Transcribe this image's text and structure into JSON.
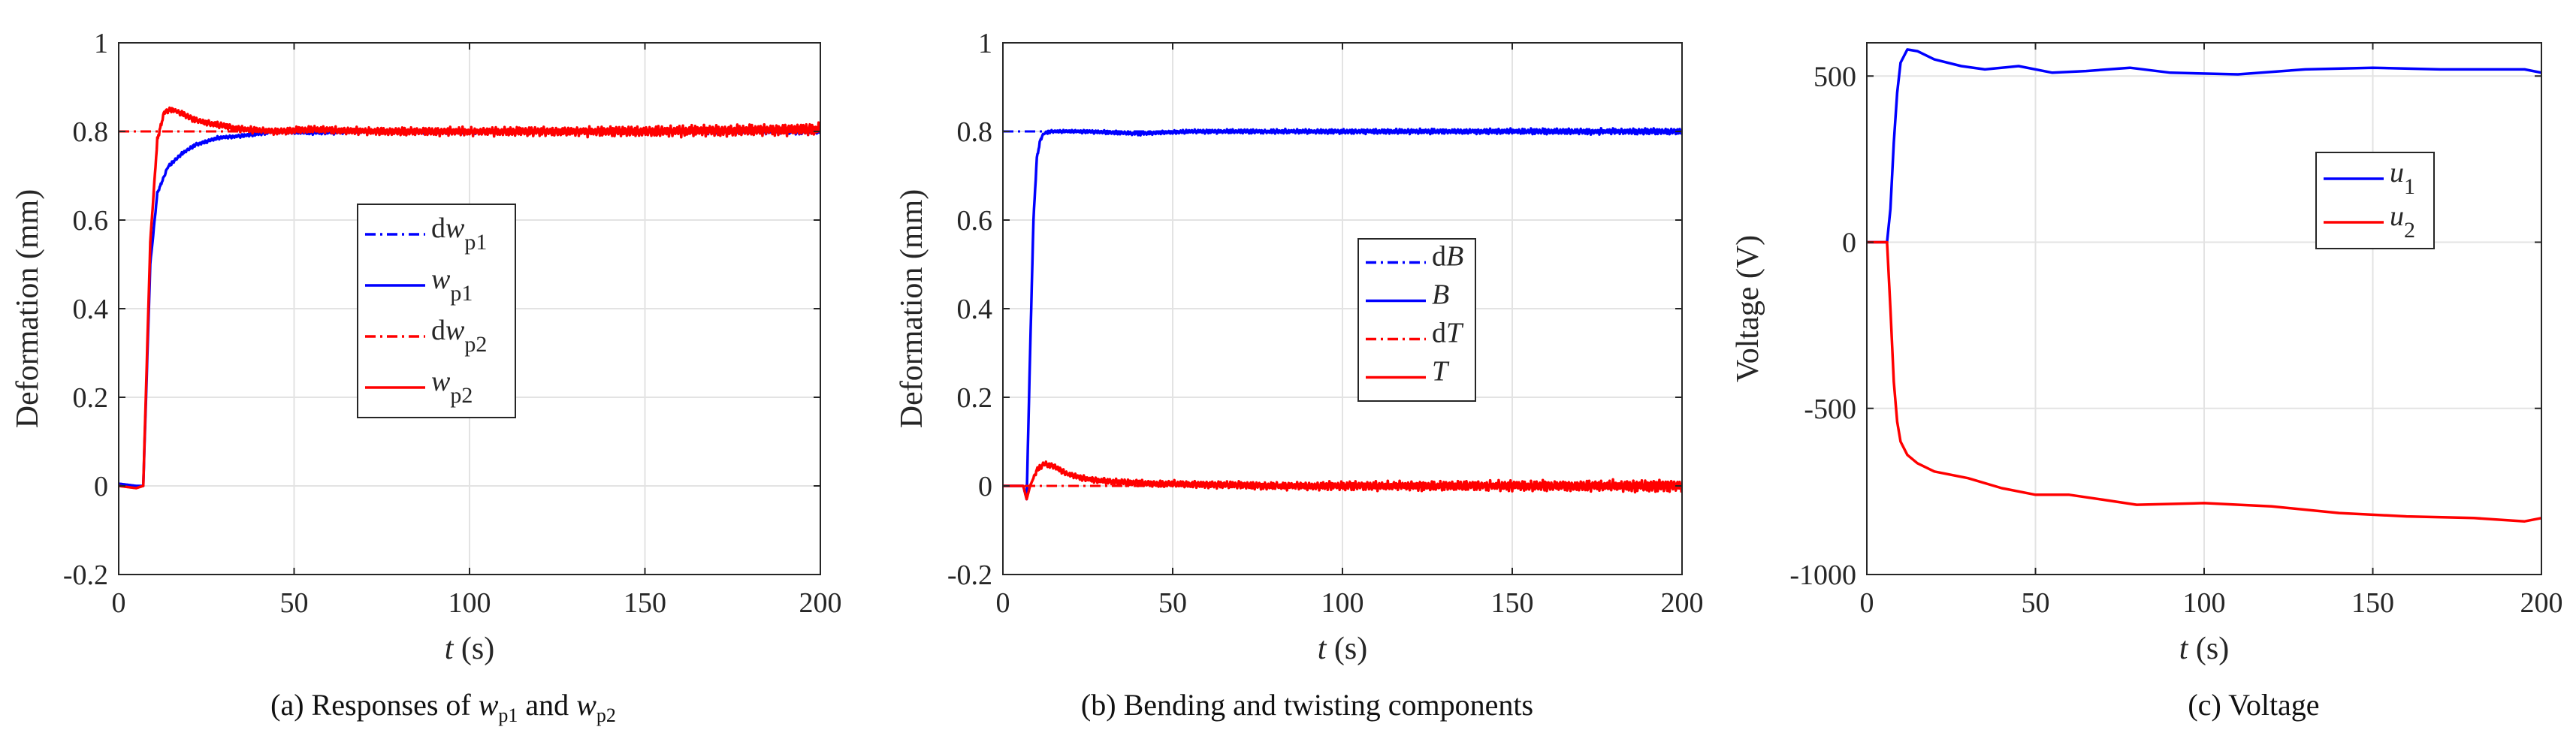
{
  "figure": {
    "panels": [
      {
        "caption": {
          "prefix": "(a) Responses of ",
          "v1": "w",
          "s1": "p1",
          "mid": " and ",
          "v2": "w",
          "s2": "p2"
        }
      },
      {
        "caption": {
          "text": "(b) Bending and twisting components"
        }
      },
      {
        "caption": {
          "text": "(c) Voltage"
        }
      }
    ]
  },
  "colors": {
    "blue": "#0000ff",
    "red": "#ff0000",
    "grid": "#e3e3e3",
    "axis": "#262626"
  },
  "chart_data": [
    {
      "type": "line",
      "xlabel_var": "t",
      "xlabel_unit": " (s)",
      "ylabel": "Deformation (mm)",
      "xlim": [
        0,
        200
      ],
      "ylim": [
        -0.2,
        1
      ],
      "xticks": [
        0,
        50,
        100,
        150,
        200
      ],
      "yticks": [
        -0.2,
        0,
        0.2,
        0.4,
        0.6,
        0.8,
        1
      ],
      "ytick_labels": [
        "-0.2",
        "0",
        "0.2",
        "0.4",
        "0.6",
        "0.8",
        "1"
      ],
      "grid": true,
      "legend_position": "center",
      "series": [
        {
          "name": "dw_p1",
          "label_pre": "d",
          "label_var": "w",
          "label_sub": "p1",
          "color": "#0000ff",
          "style": "dashdot",
          "x": [
            0,
            7,
            200
          ],
          "y": [
            0.8,
            0.8,
            0.8
          ]
        },
        {
          "name": "w_p1",
          "label_pre": "",
          "label_var": "w",
          "label_sub": "p1",
          "color": "#0000ff",
          "style": "solid",
          "x": [
            0,
            5,
            7,
            9,
            11,
            14,
            18,
            22,
            28,
            35,
            45,
            55,
            70,
            90,
            120,
            150,
            200
          ],
          "y": [
            0.005,
            0.0,
            0.0,
            0.5,
            0.66,
            0.72,
            0.75,
            0.77,
            0.785,
            0.79,
            0.8,
            0.797,
            0.8,
            0.798,
            0.8,
            0.8,
            0.8
          ]
        },
        {
          "name": "dw_p2",
          "label_pre": "d",
          "label_var": "w",
          "label_sub": "p2",
          "color": "#ff0000",
          "style": "dashdot",
          "x": [
            0,
            7,
            200
          ],
          "y": [
            0.8,
            0.8,
            0.8
          ]
        },
        {
          "name": "w_p2",
          "label_pre": "",
          "label_var": "w",
          "label_sub": "p2",
          "color": "#ff0000",
          "style": "solid",
          "x": [
            0,
            5,
            7,
            9,
            11,
            13,
            15,
            18,
            22,
            28,
            35,
            45,
            55,
            70,
            100,
            150,
            200
          ],
          "y": [
            0.0,
            -0.005,
            0.0,
            0.55,
            0.78,
            0.845,
            0.85,
            0.84,
            0.825,
            0.815,
            0.805,
            0.8,
            0.805,
            0.8,
            0.8,
            0.8,
            0.805
          ]
        }
      ]
    },
    {
      "type": "line",
      "xlabel_var": "t",
      "xlabel_unit": " (s)",
      "ylabel": "Deformation (mm)",
      "xlim": [
        0,
        200
      ],
      "ylim": [
        -0.2,
        1
      ],
      "xticks": [
        0,
        50,
        100,
        150,
        200
      ],
      "yticks": [
        -0.2,
        0,
        0.2,
        0.4,
        0.6,
        0.8,
        1
      ],
      "ytick_labels": [
        "-0.2",
        "0",
        "0.2",
        "0.4",
        "0.6",
        "0.8",
        "1"
      ],
      "grid": true,
      "legend_position": "center-right",
      "series": [
        {
          "name": "dB",
          "label_pre": "d",
          "label_var": "B",
          "label_sub": "",
          "color": "#0000ff",
          "style": "dashdot",
          "x": [
            0,
            7,
            200
          ],
          "y": [
            0.8,
            0.8,
            0.8
          ]
        },
        {
          "name": "B",
          "label_pre": "",
          "label_var": "B",
          "label_sub": "",
          "color": "#0000ff",
          "style": "solid",
          "x": [
            0,
            6,
            7,
            8,
            9,
            10,
            11,
            12,
            14,
            18,
            25,
            40,
            55,
            80,
            120,
            160,
            200
          ],
          "y": [
            0.0,
            0.0,
            -0.03,
            0.3,
            0.6,
            0.74,
            0.78,
            0.795,
            0.8,
            0.8,
            0.8,
            0.795,
            0.8,
            0.8,
            0.8,
            0.8,
            0.8
          ]
        },
        {
          "name": "dT",
          "label_pre": "d",
          "label_var": "T",
          "label_sub": "",
          "color": "#ff0000",
          "style": "dashdot",
          "x": [
            0,
            200
          ],
          "y": [
            0.0,
            0.0
          ]
        },
        {
          "name": "T",
          "label_pre": "",
          "label_var": "T",
          "label_sub": "",
          "color": "#ff0000",
          "style": "solid",
          "x": [
            0,
            6,
            7,
            8,
            10,
            12,
            15,
            18,
            22,
            28,
            35,
            45,
            60,
            80,
            100,
            140,
            200
          ],
          "y": [
            0.0,
            0.0,
            -0.03,
            0.0,
            0.035,
            0.05,
            0.045,
            0.03,
            0.02,
            0.012,
            0.008,
            0.005,
            0.003,
            0.0,
            0.0,
            0.0,
            0.0
          ]
        }
      ]
    },
    {
      "type": "line",
      "xlabel_var": "t",
      "xlabel_unit": " (s)",
      "ylabel": "Voltage (V)",
      "xlim": [
        0,
        200
      ],
      "ylim": [
        -1000,
        600
      ],
      "xticks": [
        0,
        50,
        100,
        150,
        200
      ],
      "yticks": [
        -1000,
        -500,
        0,
        500
      ],
      "ytick_labels": [
        "-1000",
        "-500",
        "0",
        "500"
      ],
      "grid": true,
      "legend_position": "upper-right",
      "series": [
        {
          "name": "u_1",
          "label_pre": "",
          "label_var": "u",
          "label_sub": "1",
          "color": "#0000ff",
          "style": "solid",
          "x": [
            0,
            6,
            7,
            8,
            9,
            10,
            12,
            15,
            20,
            28,
            35,
            45,
            55,
            65,
            78,
            90,
            110,
            130,
            150,
            170,
            185,
            195,
            200
          ],
          "y": [
            0,
            0,
            100,
            300,
            450,
            540,
            580,
            575,
            550,
            530,
            520,
            530,
            510,
            515,
            525,
            510,
            505,
            520,
            525,
            520,
            520,
            520,
            510
          ]
        },
        {
          "name": "u_2",
          "label_pre": "",
          "label_var": "u",
          "label_sub": "2",
          "color": "#ff0000",
          "style": "solid",
          "x": [
            0,
            6,
            7,
            8,
            9,
            10,
            12,
            15,
            20,
            30,
            40,
            50,
            60,
            70,
            80,
            100,
            120,
            140,
            160,
            180,
            195,
            200
          ],
          "y": [
            0,
            0,
            -200,
            -420,
            -540,
            -600,
            -640,
            -665,
            -690,
            -710,
            -740,
            -760,
            -760,
            -775,
            -790,
            -785,
            -795,
            -815,
            -825,
            -830,
            -840,
            -830
          ]
        }
      ]
    }
  ]
}
